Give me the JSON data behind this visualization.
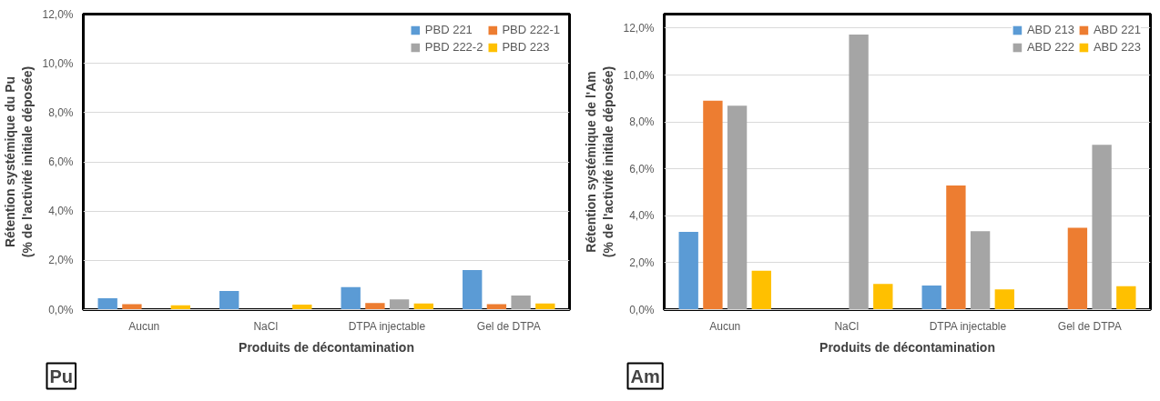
{
  "chart_data": [
    {
      "type": "bar",
      "xlabel": "Produits de décontamination",
      "ylabel": "Rétention systémique du Pu\n(% de l'activité initiale déposée)",
      "annotations": [
        "Pu"
      ],
      "categories": [
        "Aucun",
        "NaCl",
        "DTPA injectable",
        "Gel de DTPA"
      ],
      "series": [
        {
          "name": "PBD 221",
          "color": "#5b9bd5",
          "values": [
            0.46,
            0.76,
            0.91,
            1.61
          ]
        },
        {
          "name": "PBD 222-1",
          "color": "#ed7d31",
          "values": [
            0.22,
            null,
            0.27,
            0.22
          ]
        },
        {
          "name": "PBD 222-2",
          "color": "#a5a5a5",
          "values": [
            null,
            null,
            0.42,
            0.57
          ]
        },
        {
          "name": "PBD 223",
          "color": "#ffc000",
          "values": [
            0.18,
            0.2,
            0.25,
            0.25
          ]
        }
      ],
      "ylim": [
        0,
        12
      ],
      "yticks": [
        {
          "value": 0,
          "label": "0,0%"
        },
        {
          "value": 2,
          "label": "2,0%"
        },
        {
          "value": 4,
          "label": "4,0%"
        },
        {
          "value": 6,
          "label": "6,0%"
        },
        {
          "value": 8,
          "label": "8,0%"
        },
        {
          "value": 10,
          "label": "10,0%"
        },
        {
          "value": 12,
          "label": "12,0%"
        }
      ],
      "grid": "y",
      "legend": "top right"
    },
    {
      "type": "bar",
      "xlabel": "Produits de décontamination",
      "ylabel": "Rétention systémique de l'Am\n(% de l'activité initiale déposée)",
      "annotations": [
        "Am"
      ],
      "categories": [
        "Aucun",
        "NaCl",
        "DTPA injectable",
        "Gel de DTPA"
      ],
      "series": [
        {
          "name": "ABD 213",
          "color": "#5b9bd5",
          "values": [
            3.31,
            null,
            1.03,
            null
          ]
        },
        {
          "name": "ABD 221",
          "color": "#ed7d31",
          "values": [
            8.91,
            null,
            5.29,
            3.49
          ]
        },
        {
          "name": "ABD 222",
          "color": "#a5a5a5",
          "values": [
            8.69,
            11.73,
            3.34,
            7.03
          ]
        },
        {
          "name": "ABD 223",
          "color": "#ffc000",
          "values": [
            1.66,
            1.1,
            0.86,
            1.0
          ]
        }
      ],
      "ylim": [
        0,
        12.6
      ],
      "yticks": [
        {
          "value": 0,
          "label": "0,0%"
        },
        {
          "value": 2,
          "label": "2,0%"
        },
        {
          "value": 4,
          "label": "4,0%"
        },
        {
          "value": 6,
          "label": "6,0%"
        },
        {
          "value": 8,
          "label": "8,0%"
        },
        {
          "value": 10,
          "label": "10,0%"
        },
        {
          "value": 12,
          "label": "12,0%"
        }
      ],
      "grid": "y",
      "legend": "top right"
    }
  ]
}
